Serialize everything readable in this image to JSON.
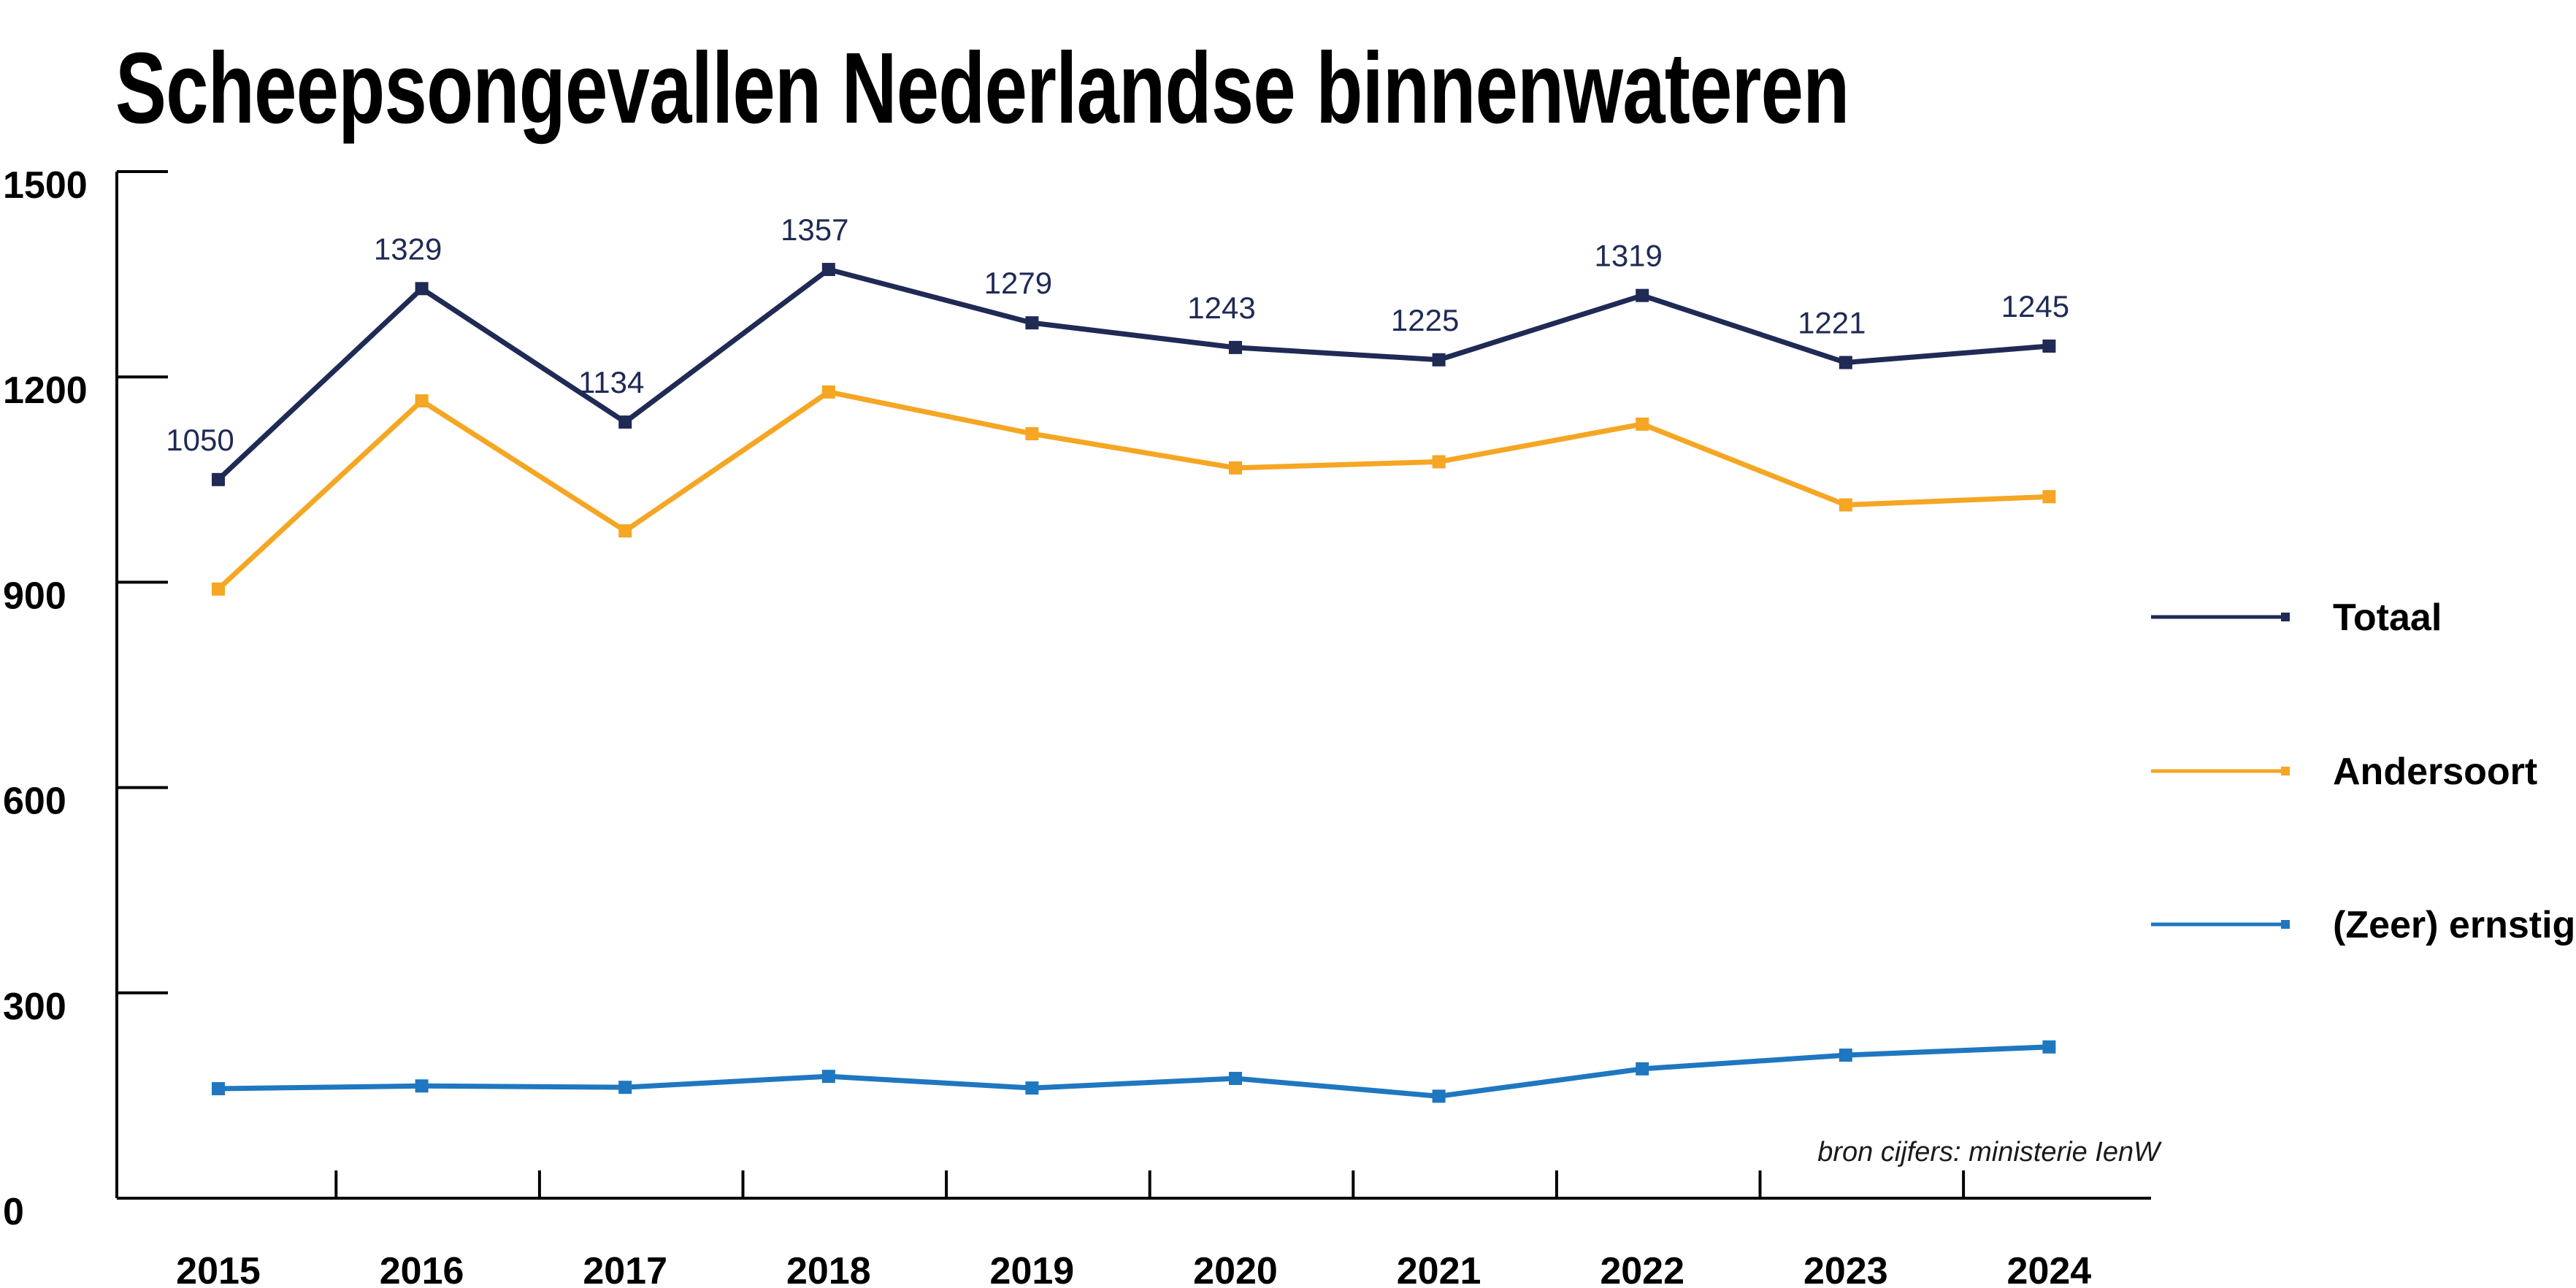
{
  "chart_data": {
    "type": "line",
    "title": "Scheepsongevallen Nederlandse binnenwateren",
    "xlabel": "",
    "ylabel": "",
    "categories": [
      "2015",
      "2016",
      "2017",
      "2018",
      "2019",
      "2020",
      "2021",
      "2022",
      "2023",
      "2024"
    ],
    "ylim": [
      0,
      1500
    ],
    "yticks": [
      "0",
      "300",
      "600",
      "900",
      "1200",
      "1500"
    ],
    "grid": false,
    "legend_position": "right",
    "series": [
      {
        "name": "Totaal",
        "color": "#1f2a55",
        "values": [
          1050,
          1329,
          1134,
          1357,
          1279,
          1243,
          1225,
          1319,
          1221,
          1245
        ],
        "labels": [
          "1050",
          "1329",
          "1134",
          "1357",
          "1279",
          "1243",
          "1225",
          "1319",
          "1221",
          "1245"
        ]
      },
      {
        "name": "Andersoort",
        "color": "#f5a623",
        "values": [
          890,
          1165,
          975,
          1178,
          1117,
          1067,
          1076,
          1131,
          1013,
          1025
        ]
      },
      {
        "name": "(Zeer) ernstig",
        "color": "#1f77c0",
        "values": [
          160,
          164,
          162,
          178,
          161,
          175,
          149,
          189,
          209,
          221
        ]
      }
    ],
    "source_note": "bron cijfers: ministerie IenW"
  }
}
